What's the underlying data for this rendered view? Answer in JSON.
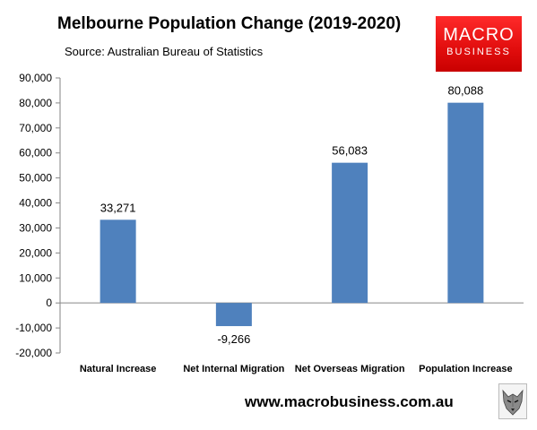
{
  "header": {
    "title": "Melbourne Population Change (2019-2020)",
    "subtitle": "Source: Australian Bureau of Statistics"
  },
  "logo": {
    "line1": "MACRO",
    "line2": "BUSINESS",
    "color": "#e10d0d"
  },
  "footer": {
    "url": "www.macrobusiness.com.au",
    "icon": "wolf-icon"
  },
  "chart_data": {
    "type": "bar",
    "title": "Melbourne Population Change (2019-2020)",
    "subtitle": "Source: Australian Bureau of Statistics",
    "categories": [
      "Natural Increase",
      "Net Internal Migration",
      "Net Overseas Migration",
      "Population Increase"
    ],
    "values": [
      33271,
      -9266,
      56083,
      80088
    ],
    "data_labels": [
      "33,271",
      "-9,266",
      "56,083",
      "80,088"
    ],
    "ylim": [
      -20000,
      90000
    ],
    "yticks": [
      -20000,
      -10000,
      0,
      10000,
      20000,
      30000,
      40000,
      50000,
      60000,
      70000,
      80000,
      90000
    ],
    "ytick_labels": [
      "-20,000",
      "-10,000",
      "0",
      "10,000",
      "20,000",
      "30,000",
      "40,000",
      "50,000",
      "60,000",
      "70,000",
      "80,000",
      "90,000"
    ],
    "xlabel": "",
    "ylabel": "",
    "grid": false,
    "legend": "none",
    "bar_color": "#4f81bd"
  }
}
